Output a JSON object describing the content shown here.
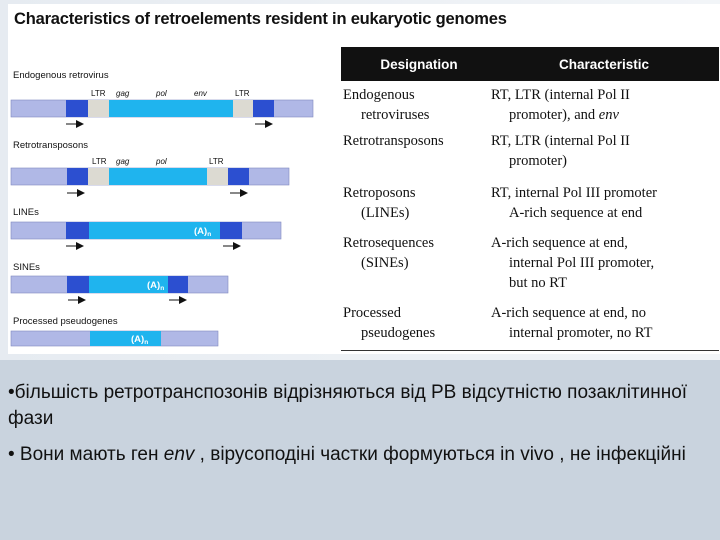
{
  "figure": {
    "title": "Characteristics of retroelements resident in eukaryotic genomes",
    "rows": [
      {
        "label": "Endogenous retrovirus",
        "ltr_left": "LTR",
        "gag": "gag",
        "pol": "pol",
        "env": "env",
        "ltr_right": "LTR"
      },
      {
        "label": "Retrotransposons",
        "ltr_left": "LTR",
        "gag": "gag",
        "pol": "pol",
        "ltr_right": "LTR"
      },
      {
        "label": "LINEs",
        "tail": "(A)",
        "tail_sub": "n"
      },
      {
        "label": "SINEs",
        "tail": "(A)",
        "tail_sub": "n"
      },
      {
        "label": "Processed pseudogenes",
        "tail": "(A)",
        "tail_sub": "n"
      }
    ],
    "colors": {
      "host_dna": "#b0b8e6",
      "element_body": "#1fb4ee",
      "ltr_box": "#dcdad2",
      "repeat": "#2c4fd0"
    }
  },
  "table": {
    "header": {
      "designation": "Designation",
      "characteristic": "Characteristic"
    },
    "rows": [
      {
        "d1": "Endogenous",
        "d2": "retroviruses",
        "c1": "RT, LTR (internal Pol II",
        "c2a": "promoter), and ",
        "c2b": "env"
      },
      {
        "d1": "Retrotransposons",
        "d2": "",
        "c1": "RT, LTR (internal Pol II",
        "c2a": "promoter)",
        "c2b": ""
      },
      {
        "d1": "Retroposons",
        "d2": "(LINEs)",
        "c1": "RT, internal Pol III promoter",
        "c2a": "A-rich sequence at end",
        "c2b": ""
      },
      {
        "d1": "Retrosequences",
        "d2": "(SINEs)",
        "c1": "A-rich sequence at end,",
        "c2a": "internal Pol III promoter,",
        "c3": "but no RT"
      },
      {
        "d1": "Processed",
        "d2": "pseudogenes",
        "c1": "A-rich sequence at end, no",
        "c2a": "internal promoter, no RT",
        "c2b": ""
      }
    ]
  },
  "bullets": [
    {
      "bullet": "•",
      "text": "більшість ретротранспозонів відрізняються від РВ відсутністю позаклітинної фази"
    },
    {
      "bullet": "•",
      "pre": " Вони мають ген ",
      "italic": "env",
      "post": " , вірусоподіні частки формуються  in vivo , не інфекційні"
    }
  ]
}
